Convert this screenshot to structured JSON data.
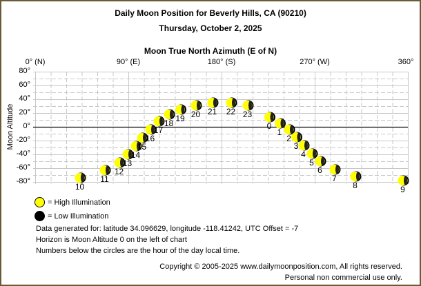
{
  "header": {
    "title": "Daily Moon Position for Beverly Hills, CA (90210)",
    "date": "Thursday, October 2, 2025"
  },
  "chart_data": {
    "type": "scatter",
    "title": "Daily Moon Position for Beverly Hills, CA (90210)",
    "subtitle": "Thursday, October 2, 2025",
    "xlabel": "Moon True North Azimuth (E of N)",
    "ylabel": "Moon Altitude",
    "xlim": [
      0,
      360
    ],
    "ylim": [
      -80,
      80
    ],
    "x_ticks": [
      "0° (N)",
      "90° (E)",
      "180° (S)",
      "270° (W)",
      "360°"
    ],
    "y_ticks": [
      "80°",
      "60°",
      "40°",
      "20°",
      "0°",
      "-20°",
      "-40°",
      "-60°",
      "-80°"
    ],
    "grid": true,
    "horizon_line": 0,
    "series": [
      {
        "name": "High Illumination",
        "color": "#ffff00",
        "points": [
          {
            "hour": "10",
            "azimuth": 43,
            "altitude": -74
          },
          {
            "hour": "11",
            "azimuth": 67,
            "altitude": -63
          },
          {
            "hour": "12",
            "azimuth": 81,
            "altitude": -52
          },
          {
            "hour": "13",
            "azimuth": 89,
            "altitude": -40
          },
          {
            "hour": "14",
            "azimuth": 97,
            "altitude": -28
          },
          {
            "hour": "15",
            "azimuth": 103,
            "altitude": -16
          },
          {
            "hour": "16",
            "azimuth": 111,
            "altitude": -4
          },
          {
            "hour": "17",
            "azimuth": 119,
            "altitude": 8
          },
          {
            "hour": "18",
            "azimuth": 129,
            "altitude": 18
          },
          {
            "hour": "19",
            "azimuth": 140,
            "altitude": 25
          },
          {
            "hour": "20",
            "azimuth": 155,
            "altitude": 31
          },
          {
            "hour": "21",
            "azimuth": 171,
            "altitude": 35
          },
          {
            "hour": "22",
            "azimuth": 189,
            "altitude": 35
          },
          {
            "hour": "23",
            "azimuth": 205,
            "altitude": 31
          },
          {
            "hour": "0",
            "azimuth": 226,
            "altitude": 14
          },
          {
            "hour": "1",
            "azimuth": 236,
            "altitude": 5
          },
          {
            "hour": "2",
            "azimuth": 245,
            "altitude": -4
          },
          {
            "hour": "3",
            "azimuth": 252,
            "altitude": -15
          },
          {
            "hour": "4",
            "azimuth": 259,
            "altitude": -27
          },
          {
            "hour": "5",
            "azimuth": 267,
            "altitude": -39
          },
          {
            "hour": "6",
            "azimuth": 275,
            "altitude": -50
          },
          {
            "hour": "7",
            "azimuth": 289,
            "altitude": -62
          },
          {
            "hour": "8",
            "azimuth": 309,
            "altitude": -72
          },
          {
            "hour": "9",
            "azimuth": 355,
            "altitude": -78
          }
        ]
      }
    ],
    "legend": [
      {
        "label": "= High Illumination",
        "color": "#ffff00"
      },
      {
        "label": "= Low Illumination",
        "color": "#000000"
      }
    ]
  },
  "notes": [
    "Data generated for: latitude 34.096629, longitude -118.41242, UTC Offset = -7",
    "Horizon is Moon Altitude 0 on the left of chart",
    "Numbers below the circles are the hour of the day local time."
  ],
  "footer": {
    "copyright": "Copyright © 2005-2025 www.dailymoonposition.com, All rights reserved.",
    "usage": "Personal non commercial use only."
  }
}
